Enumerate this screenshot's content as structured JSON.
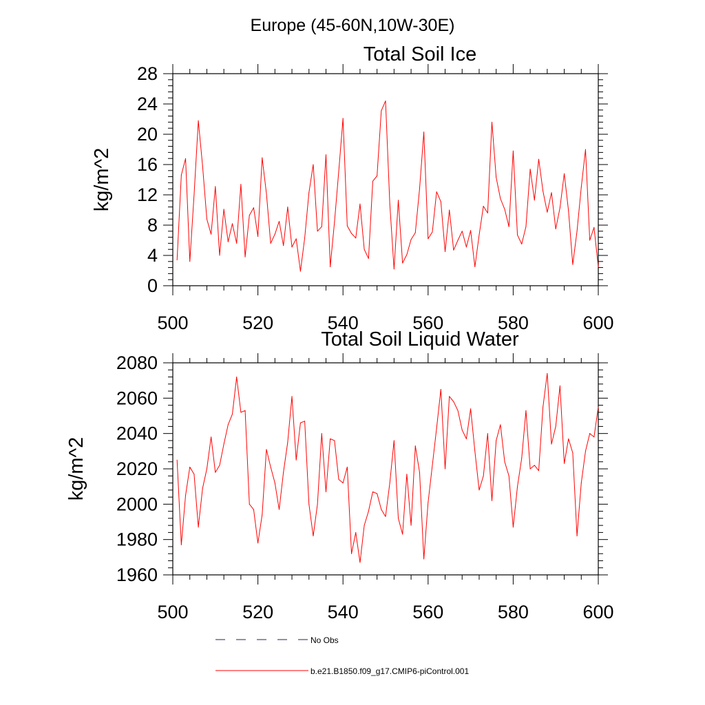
{
  "figure_title": "Europe (45-60N,10W-30E)",
  "legend": {
    "entries": [
      {
        "label": "No Obs",
        "color": "#4a4f7a",
        "style": "dashed"
      },
      {
        "label": "b.e21.B1850.f09_g17.CMIP6-piControl.001",
        "color": "#ff0000",
        "style": "solid"
      }
    ]
  },
  "chart_data": [
    {
      "type": "line",
      "title": "Total Soil Ice",
      "xlabel": "",
      "ylabel": "kg/m^2",
      "xlim": [
        500,
        600
      ],
      "ylim": [
        0,
        28
      ],
      "xticks": [
        500,
        520,
        540,
        560,
        580,
        600
      ],
      "yticks": [
        0,
        4,
        8,
        12,
        16,
        20,
        24,
        28
      ],
      "grid": false,
      "series": [
        {
          "name": "b.e21.B1850.f09_g17.CMIP6-piControl.001",
          "color": "#ff0000",
          "x_start": 501,
          "x_step": 1,
          "values": [
            3.4,
            14.6,
            16.8,
            3.2,
            12.0,
            21.8,
            15.8,
            8.8,
            6.8,
            13.1,
            4.0,
            10.1,
            5.8,
            8.2,
            5.6,
            13.4,
            3.8,
            9.3,
            10.3,
            6.5,
            16.9,
            12.2,
            5.6,
            6.8,
            8.5,
            5.3,
            10.4,
            5.1,
            6.2,
            1.9,
            6.3,
            12.3,
            16.0,
            7.2,
            7.8,
            17.3,
            2.5,
            8.4,
            15.1,
            22.1,
            7.9,
            6.9,
            6.3,
            10.8,
            4.8,
            3.6,
            13.8,
            14.5,
            23.1,
            24.4,
            10.8,
            2.2,
            11.3,
            3.0,
            4.1,
            6.1,
            7.0,
            12.8,
            20.3,
            6.2,
            7.1,
            12.4,
            11.1,
            4.5,
            10.0,
            4.7,
            6.0,
            7.2,
            5.1,
            7.3,
            2.5,
            6.7,
            10.5,
            9.6,
            21.6,
            14.3,
            11.5,
            10.1,
            7.8,
            17.8,
            6.7,
            5.5,
            7.8,
            15.4,
            11.3,
            16.7,
            12.5,
            9.7,
            12.3,
            7.5,
            10.3,
            14.8,
            9.9,
            2.8,
            7.2,
            13.0,
            18.0,
            6.0,
            7.7,
            2.5
          ]
        }
      ]
    },
    {
      "type": "line",
      "title": "Total Soil Liquid Water",
      "xlabel": "",
      "ylabel": "kg/m^2",
      "xlim": [
        500,
        600
      ],
      "ylim": [
        1960,
        2080
      ],
      "xticks": [
        500,
        520,
        540,
        560,
        580,
        600
      ],
      "yticks": [
        1960,
        1980,
        2000,
        2020,
        2040,
        2060,
        2080
      ],
      "grid": false,
      "series": [
        {
          "name": "b.e21.B1850.f09_g17.CMIP6-piControl.001",
          "color": "#ff0000",
          "x_start": 501,
          "x_step": 1,
          "values": [
            2025,
            1977,
            2005,
            2021,
            2017,
            1987,
            2009,
            2020,
            2038,
            2018,
            2022,
            2034,
            2045,
            2051,
            2072,
            2052,
            2053,
            2000,
            1997,
            1978,
            1994,
            2031,
            2021,
            2012,
            1997,
            2018,
            2035,
            2061,
            2025,
            2046,
            2047,
            2000,
            1982,
            2000,
            2040,
            2007,
            2037,
            2036,
            2014,
            2012,
            2021,
            1972,
            1984,
            1967,
            1988,
            1996,
            2007,
            2006,
            1997,
            1993,
            2012,
            2036,
            1992,
            1983,
            2017,
            1988,
            2033,
            2018,
            1969,
            2001,
            2022,
            2043,
            2065,
            2020,
            2061,
            2058,
            2053,
            2042,
            2037,
            2054,
            2030,
            2008,
            2016,
            2040,
            2002,
            2036,
            2045,
            2024,
            2016,
            1987,
            2010,
            2026,
            2053,
            2020,
            2022,
            2019,
            2055,
            2074,
            2034,
            2044,
            2067,
            2023,
            2037,
            2029,
            1982,
            2012,
            2030,
            2040,
            2038,
            2055
          ]
        }
      ]
    }
  ]
}
